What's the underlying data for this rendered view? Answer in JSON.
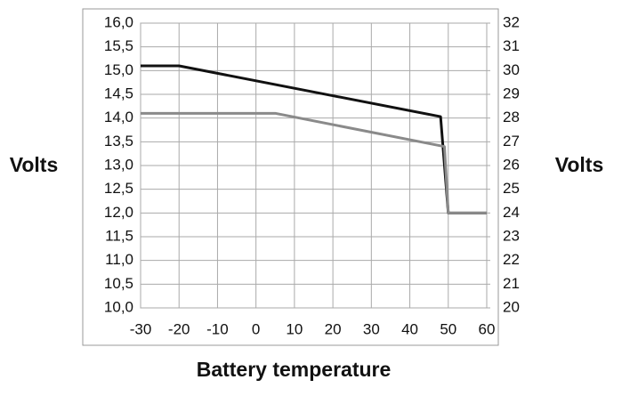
{
  "chart_data": {
    "type": "line",
    "ylabel": "Volts",
    "y2label": "Volts",
    "xlabel": "Battery temperature",
    "xlim": [
      -30,
      60
    ],
    "xticks": [
      -30,
      -20,
      -10,
      0,
      10,
      20,
      30,
      40,
      50,
      60
    ],
    "ylim": [
      10,
      16
    ],
    "yticks": [
      {
        "value": 10,
        "label": "10,0"
      },
      {
        "value": 10.5,
        "label": "10,5"
      },
      {
        "value": 11,
        "label": "11,0"
      },
      {
        "value": 11.5,
        "label": "11,5"
      },
      {
        "value": 12,
        "label": "12,0"
      },
      {
        "value": 12.5,
        "label": "12,5"
      },
      {
        "value": 13,
        "label": "13,0"
      },
      {
        "value": 13.5,
        "label": "13,5"
      },
      {
        "value": 14,
        "label": "14,0"
      },
      {
        "value": 14.5,
        "label": "14,5"
      },
      {
        "value": 15,
        "label": "15,0"
      },
      {
        "value": 15.5,
        "label": "15,5"
      },
      {
        "value": 16,
        "label": "16,0"
      }
    ],
    "y2lim": [
      20,
      32
    ],
    "y2ticks": [
      20,
      21,
      22,
      23,
      24,
      25,
      26,
      27,
      28,
      29,
      30,
      31,
      32
    ],
    "grid": true,
    "series": [
      {
        "color": "#111111",
        "x": [
          -30,
          -20,
          48,
          50,
          60
        ],
        "values": [
          15.1,
          15.1,
          14.03,
          12.0,
          12.0
        ]
      },
      {
        "color": "#8a8a8a",
        "x": [
          -30,
          5,
          49,
          50,
          60
        ],
        "values": [
          14.1,
          14.1,
          13.4,
          12.0,
          12.0
        ]
      }
    ]
  }
}
